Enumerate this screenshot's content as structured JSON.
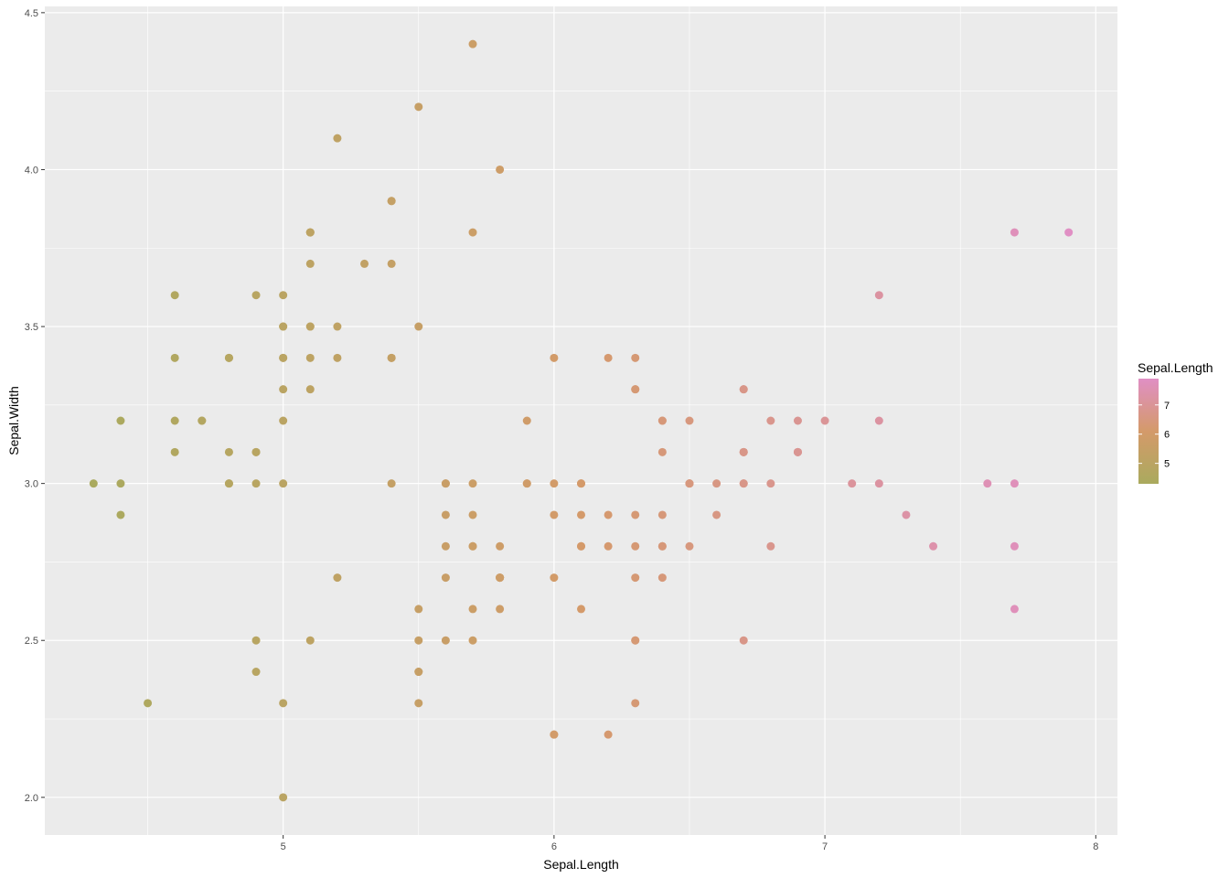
{
  "chart_data": {
    "type": "scatter",
    "xlabel": "Sepal.Length",
    "ylabel": "Sepal.Width",
    "xlim": [
      4.12,
      8.08
    ],
    "ylim": [
      1.88,
      4.52
    ],
    "x_ticks": [
      5,
      6,
      7,
      8
    ],
    "y_ticks": [
      2.0,
      2.5,
      3.0,
      3.5,
      4.0,
      4.5
    ],
    "x_tick_labels": [
      "5",
      "6",
      "7",
      "8"
    ],
    "y_tick_labels": [
      "2.0",
      "2.5",
      "3.0",
      "3.5",
      "4.0",
      "4.5"
    ],
    "grid": true,
    "panel_background": "#ebebeb",
    "grid_color": "#ffffff",
    "color_scale": {
      "low": "#aaaa5e",
      "mid": "#d49a6a",
      "high": "#e08fc4",
      "range": [
        4.3,
        7.9
      ]
    },
    "legend": {
      "title": "Sepal.Length",
      "position": "right",
      "ticks": [
        5,
        6,
        7
      ],
      "tick_labels": [
        "5",
        "6",
        "7"
      ]
    },
    "points": [
      [
        5.1,
        3.5
      ],
      [
        4.9,
        3.0
      ],
      [
        4.7,
        3.2
      ],
      [
        4.6,
        3.1
      ],
      [
        5.0,
        3.6
      ],
      [
        5.4,
        3.9
      ],
      [
        4.6,
        3.4
      ],
      [
        5.0,
        3.4
      ],
      [
        4.4,
        2.9
      ],
      [
        4.9,
        3.1
      ],
      [
        5.4,
        3.7
      ],
      [
        4.8,
        3.4
      ],
      [
        4.8,
        3.0
      ],
      [
        4.3,
        3.0
      ],
      [
        5.8,
        4.0
      ],
      [
        5.7,
        4.4
      ],
      [
        5.4,
        3.9
      ],
      [
        5.1,
        3.5
      ],
      [
        5.7,
        3.8
      ],
      [
        5.1,
        3.8
      ],
      [
        5.4,
        3.4
      ],
      [
        5.1,
        3.7
      ],
      [
        4.6,
        3.6
      ],
      [
        5.1,
        3.3
      ],
      [
        4.8,
        3.4
      ],
      [
        5.0,
        3.0
      ],
      [
        5.0,
        3.4
      ],
      [
        5.2,
        3.5
      ],
      [
        5.2,
        3.4
      ],
      [
        4.7,
        3.2
      ],
      [
        4.8,
        3.1
      ],
      [
        5.4,
        3.4
      ],
      [
        5.2,
        4.1
      ],
      [
        5.5,
        4.2
      ],
      [
        4.9,
        3.1
      ],
      [
        5.0,
        3.2
      ],
      [
        5.5,
        3.5
      ],
      [
        4.9,
        3.6
      ],
      [
        4.4,
        3.0
      ],
      [
        5.1,
        3.4
      ],
      [
        5.0,
        3.5
      ],
      [
        4.5,
        2.3
      ],
      [
        4.4,
        3.2
      ],
      [
        5.0,
        3.5
      ],
      [
        5.1,
        3.8
      ],
      [
        4.8,
        3.0
      ],
      [
        5.1,
        3.8
      ],
      [
        4.6,
        3.2
      ],
      [
        5.3,
        3.7
      ],
      [
        5.0,
        3.3
      ],
      [
        7.0,
        3.2
      ],
      [
        6.4,
        3.2
      ],
      [
        6.9,
        3.1
      ],
      [
        5.5,
        2.3
      ],
      [
        6.5,
        2.8
      ],
      [
        5.7,
        2.8
      ],
      [
        6.3,
        3.3
      ],
      [
        4.9,
        2.4
      ],
      [
        6.6,
        2.9
      ],
      [
        5.2,
        2.7
      ],
      [
        5.0,
        2.0
      ],
      [
        5.9,
        3.0
      ],
      [
        6.0,
        2.2
      ],
      [
        6.1,
        2.9
      ],
      [
        5.6,
        2.9
      ],
      [
        6.7,
        3.1
      ],
      [
        5.6,
        3.0
      ],
      [
        5.8,
        2.7
      ],
      [
        6.2,
        2.2
      ],
      [
        5.6,
        2.5
      ],
      [
        5.9,
        3.2
      ],
      [
        6.1,
        2.8
      ],
      [
        6.3,
        2.5
      ],
      [
        6.1,
        2.8
      ],
      [
        6.4,
        2.9
      ],
      [
        6.6,
        3.0
      ],
      [
        6.8,
        2.8
      ],
      [
        6.7,
        3.0
      ],
      [
        6.0,
        2.9
      ],
      [
        5.7,
        2.6
      ],
      [
        5.5,
        2.4
      ],
      [
        5.5,
        2.4
      ],
      [
        5.8,
        2.7
      ],
      [
        6.0,
        2.7
      ],
      [
        5.4,
        3.0
      ],
      [
        6.0,
        3.4
      ],
      [
        6.7,
        3.1
      ],
      [
        6.3,
        2.3
      ],
      [
        5.6,
        3.0
      ],
      [
        5.5,
        2.5
      ],
      [
        5.5,
        2.6
      ],
      [
        6.1,
        3.0
      ],
      [
        5.8,
        2.6
      ],
      [
        5.0,
        2.3
      ],
      [
        5.6,
        2.7
      ],
      [
        5.7,
        3.0
      ],
      [
        5.7,
        2.9
      ],
      [
        6.2,
        2.9
      ],
      [
        5.1,
        2.5
      ],
      [
        5.7,
        2.8
      ],
      [
        6.3,
        3.3
      ],
      [
        5.8,
        2.7
      ],
      [
        7.1,
        3.0
      ],
      [
        6.3,
        2.9
      ],
      [
        6.5,
        3.0
      ],
      [
        7.6,
        3.0
      ],
      [
        4.9,
        2.5
      ],
      [
        7.3,
        2.9
      ],
      [
        6.7,
        2.5
      ],
      [
        7.2,
        3.6
      ],
      [
        6.5,
        3.2
      ],
      [
        6.4,
        2.7
      ],
      [
        6.8,
        3.0
      ],
      [
        5.7,
        2.5
      ],
      [
        5.8,
        2.8
      ],
      [
        6.4,
        3.2
      ],
      [
        6.5,
        3.0
      ],
      [
        7.7,
        3.8
      ],
      [
        7.7,
        2.6
      ],
      [
        6.0,
        2.2
      ],
      [
        6.9,
        3.2
      ],
      [
        5.6,
        2.8
      ],
      [
        7.7,
        2.8
      ],
      [
        6.3,
        2.7
      ],
      [
        6.7,
        3.3
      ],
      [
        7.2,
        3.2
      ],
      [
        6.2,
        2.8
      ],
      [
        6.1,
        3.0
      ],
      [
        6.4,
        2.8
      ],
      [
        7.2,
        3.0
      ],
      [
        7.4,
        2.8
      ],
      [
        7.9,
        3.8
      ],
      [
        6.4,
        2.8
      ],
      [
        6.3,
        2.8
      ],
      [
        6.1,
        2.6
      ],
      [
        7.7,
        3.0
      ],
      [
        6.3,
        3.4
      ],
      [
        6.4,
        3.1
      ],
      [
        6.0,
        3.0
      ],
      [
        6.9,
        3.1
      ],
      [
        6.7,
        3.1
      ],
      [
        6.9,
        3.1
      ],
      [
        5.8,
        2.7
      ],
      [
        6.8,
        3.2
      ],
      [
        6.7,
        3.3
      ],
      [
        6.7,
        3.0
      ],
      [
        6.3,
        2.5
      ],
      [
        6.5,
        3.0
      ],
      [
        6.2,
        3.4
      ],
      [
        5.9,
        3.0
      ]
    ]
  }
}
